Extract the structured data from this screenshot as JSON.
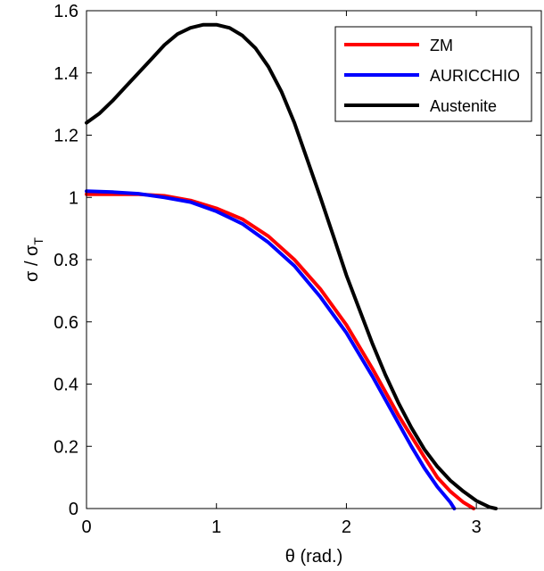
{
  "chart_data": {
    "type": "line",
    "title": "",
    "xlabel": "θ (rad.)",
    "ylabel_main": "σ / σ",
    "ylabel_sub": "T",
    "xlim": [
      0,
      3.5
    ],
    "ylim": [
      0,
      1.6
    ],
    "xticks": [
      0,
      1,
      2,
      3
    ],
    "xtick_labels": [
      "0",
      "1",
      "2",
      "3"
    ],
    "yticks": [
      0,
      0.2,
      0.4,
      0.6,
      0.8,
      1.0,
      1.2,
      1.4,
      1.6
    ],
    "ytick_labels": [
      "0",
      "0.2",
      "0.4",
      "0.6",
      "0.8",
      "1",
      "1.2",
      "1.4",
      "1.6"
    ],
    "grid": false,
    "legend_position": "top-right",
    "series": [
      {
        "name": "ZM",
        "color": "#ff0000",
        "x": [
          0,
          0.2,
          0.4,
          0.6,
          0.8,
          1.0,
          1.2,
          1.4,
          1.6,
          1.8,
          2.0,
          2.2,
          2.4,
          2.6,
          2.7,
          2.8,
          2.9,
          2.98
        ],
        "y": [
          1.01,
          1.01,
          1.01,
          1.005,
          0.99,
          0.965,
          0.93,
          0.875,
          0.8,
          0.705,
          0.59,
          0.45,
          0.3,
          0.165,
          0.1,
          0.055,
          0.02,
          0.0
        ]
      },
      {
        "name": "AURICCHIO",
        "color": "#0000ff",
        "x": [
          0,
          0.2,
          0.4,
          0.6,
          0.8,
          1.0,
          1.2,
          1.4,
          1.6,
          1.8,
          2.0,
          2.2,
          2.4,
          2.5,
          2.6,
          2.7,
          2.8,
          2.83
        ],
        "y": [
          1.02,
          1.017,
          1.012,
          1.0,
          0.985,
          0.955,
          0.915,
          0.855,
          0.78,
          0.68,
          0.565,
          0.425,
          0.275,
          0.2,
          0.13,
          0.07,
          0.02,
          0.0
        ]
      },
      {
        "name": "Austenite",
        "color": "#000000",
        "x": [
          0,
          0.1,
          0.2,
          0.3,
          0.4,
          0.5,
          0.6,
          0.7,
          0.8,
          0.9,
          1.0,
          1.1,
          1.2,
          1.3,
          1.4,
          1.5,
          1.6,
          1.7,
          1.8,
          1.9,
          2.0,
          2.1,
          2.2,
          2.3,
          2.4,
          2.5,
          2.6,
          2.7,
          2.8,
          2.9,
          3.0,
          3.1,
          3.15
        ],
        "y": [
          1.24,
          1.27,
          1.31,
          1.355,
          1.4,
          1.445,
          1.49,
          1.525,
          1.545,
          1.555,
          1.555,
          1.545,
          1.52,
          1.48,
          1.42,
          1.34,
          1.24,
          1.12,
          1.0,
          0.875,
          0.75,
          0.64,
          0.53,
          0.43,
          0.34,
          0.26,
          0.19,
          0.135,
          0.09,
          0.055,
          0.025,
          0.005,
          0.0
        ]
      }
    ]
  }
}
